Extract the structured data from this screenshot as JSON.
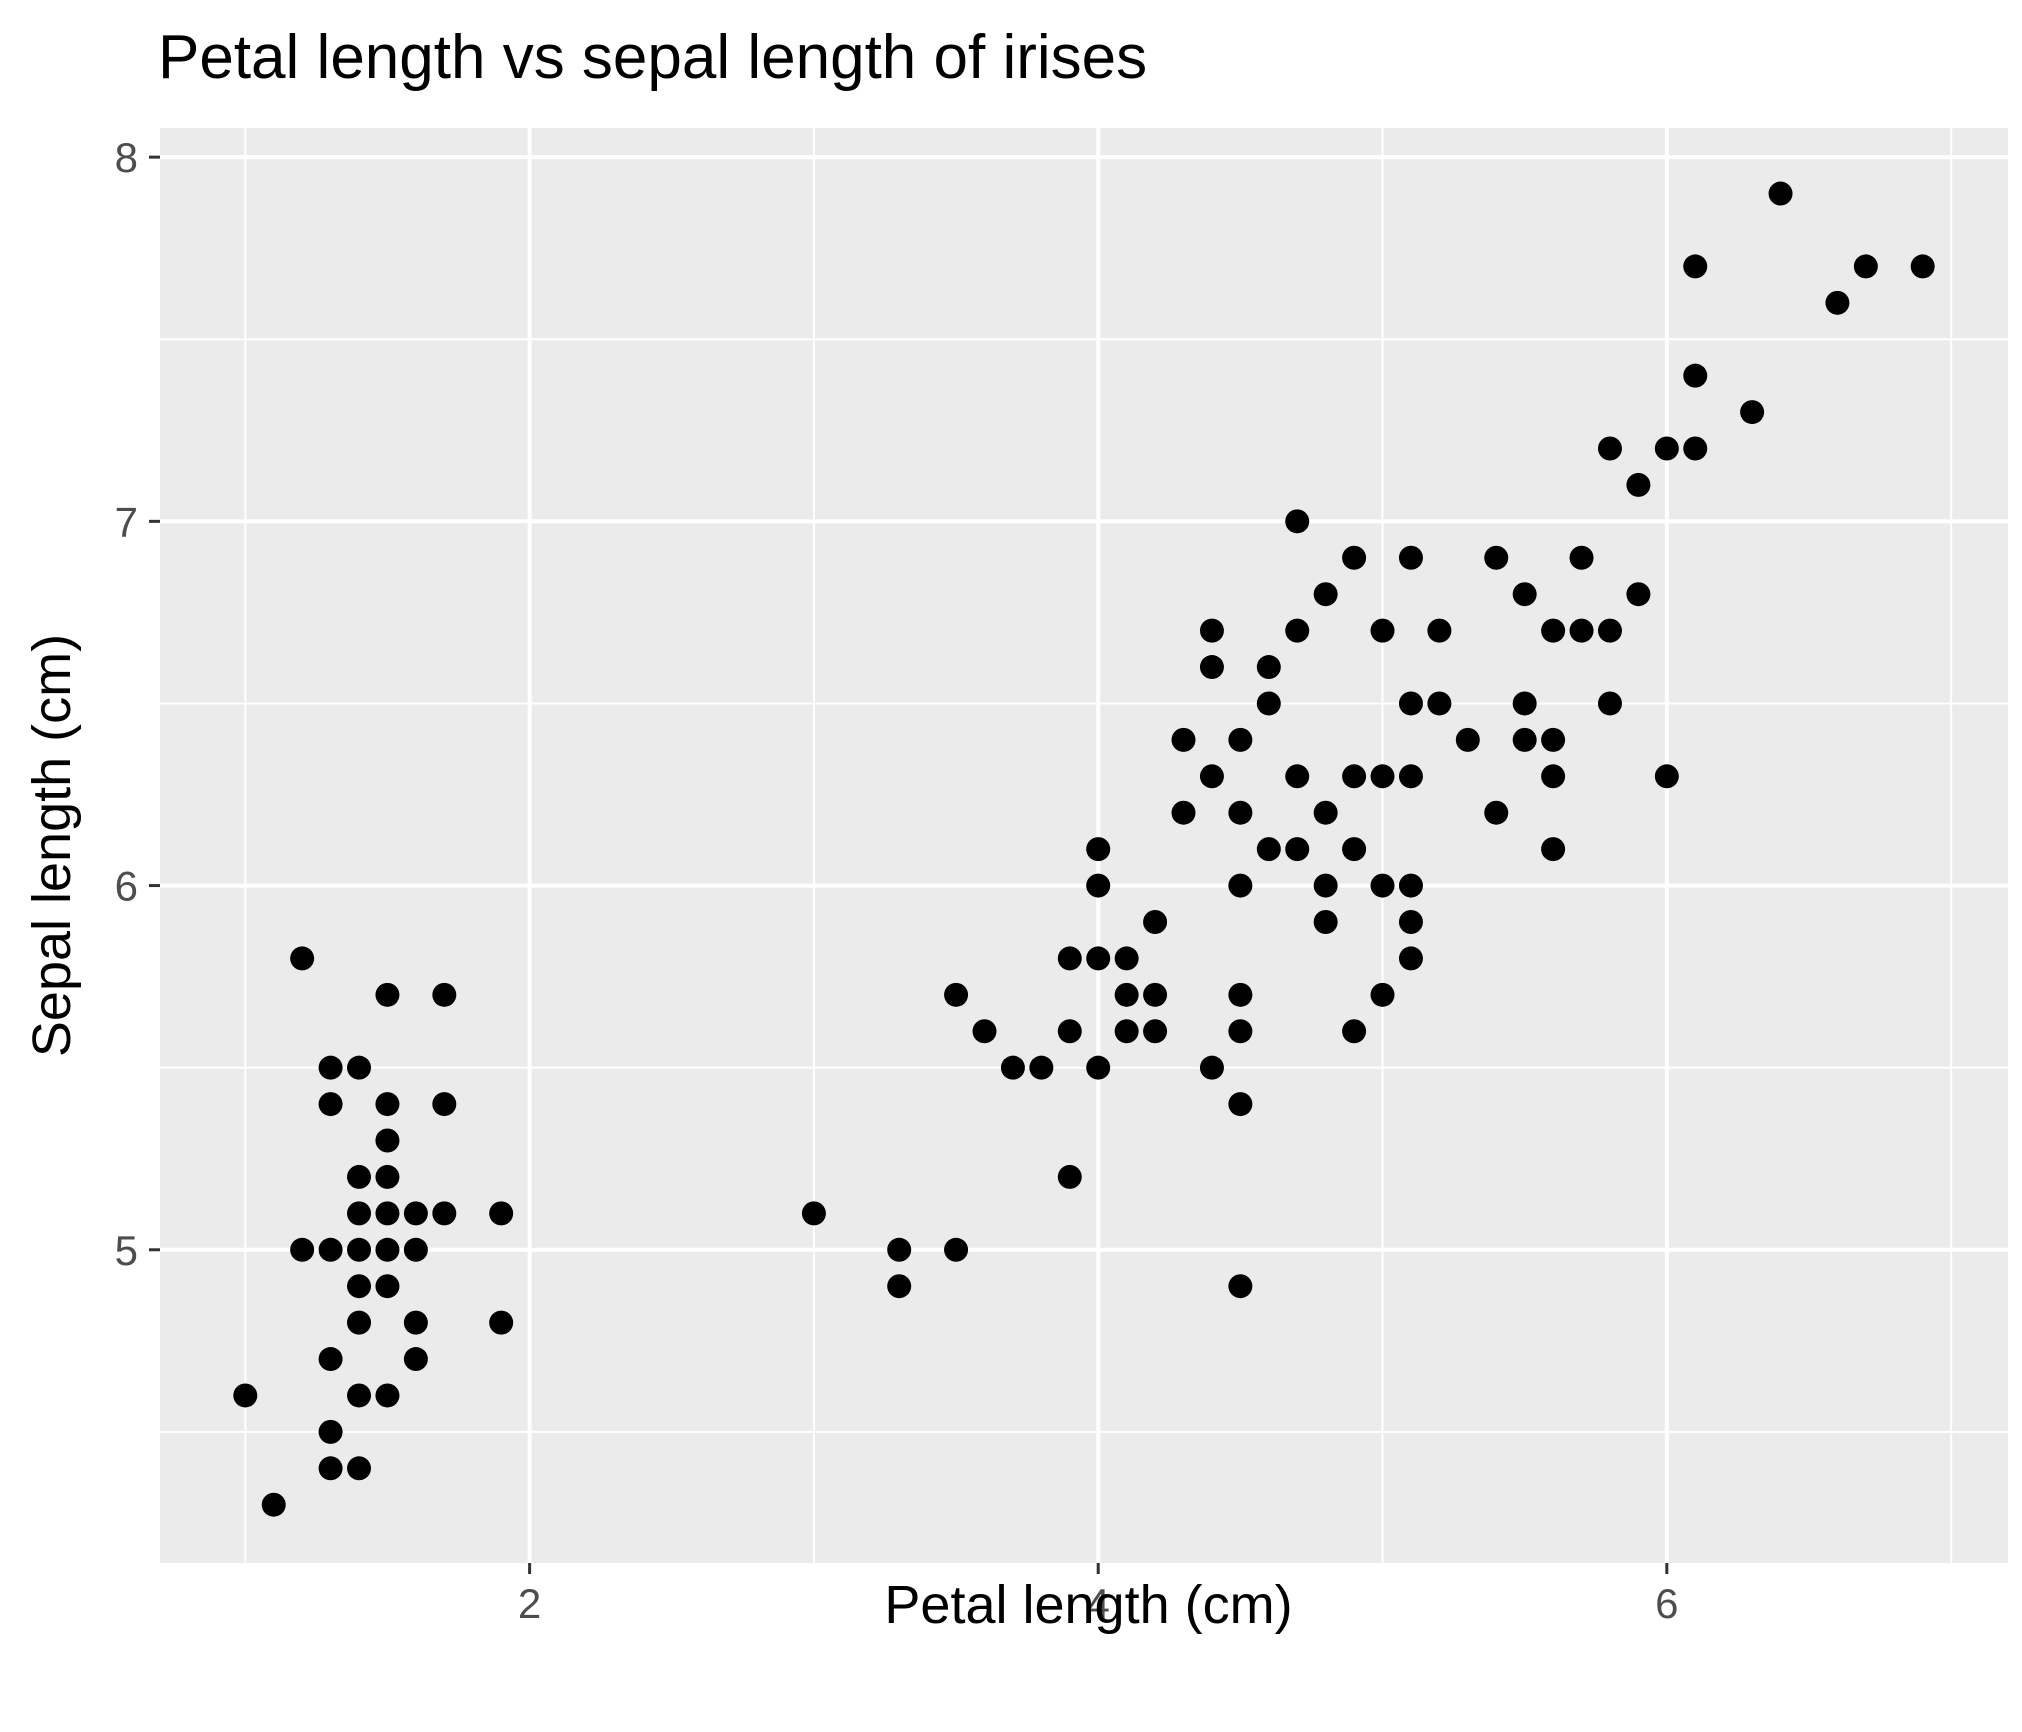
{
  "chart_data": {
    "type": "scatter",
    "title": "Petal length vs sepal length of irises",
    "xlabel": "Petal length (cm)",
    "ylabel": "Sepal length (cm)",
    "xlim": [
      0.7,
      7.2
    ],
    "ylim": [
      4.14,
      8.08
    ],
    "x_ticks": [
      2,
      4,
      6
    ],
    "y_ticks": [
      5,
      6,
      7,
      8
    ],
    "x_tick_labels": [
      "2",
      "4",
      "6"
    ],
    "y_tick_labels": [
      "5",
      "6",
      "7",
      "8"
    ],
    "x_minor": [
      1,
      3,
      5,
      7
    ],
    "y_minor": [
      4.5,
      5.5,
      6.5,
      7.5
    ],
    "grid": true,
    "background": "#ebebeb",
    "point_color": "#000000",
    "points": [
      [
        1.0,
        4.6
      ],
      [
        1.1,
        4.3
      ],
      [
        1.2,
        5.8
      ],
      [
        1.2,
        5.0
      ],
      [
        1.3,
        5.5
      ],
      [
        1.3,
        5.4
      ],
      [
        1.3,
        5.0
      ],
      [
        1.3,
        4.7
      ],
      [
        1.3,
        4.5
      ],
      [
        1.3,
        4.4
      ],
      [
        1.4,
        5.5
      ],
      [
        1.4,
        5.2
      ],
      [
        1.4,
        5.1
      ],
      [
        1.4,
        5.0
      ],
      [
        1.4,
        4.9
      ],
      [
        1.4,
        4.8
      ],
      [
        1.4,
        4.6
      ],
      [
        1.4,
        4.4
      ],
      [
        1.5,
        5.7
      ],
      [
        1.5,
        5.4
      ],
      [
        1.5,
        5.3
      ],
      [
        1.5,
        5.2
      ],
      [
        1.5,
        5.1
      ],
      [
        1.5,
        5.0
      ],
      [
        1.5,
        4.9
      ],
      [
        1.5,
        4.6
      ],
      [
        1.6,
        5.1
      ],
      [
        1.6,
        5.0
      ],
      [
        1.6,
        4.8
      ],
      [
        1.6,
        4.7
      ],
      [
        1.7,
        5.7
      ],
      [
        1.7,
        5.4
      ],
      [
        1.7,
        5.1
      ],
      [
        1.9,
        5.1
      ],
      [
        1.9,
        4.8
      ],
      [
        3.0,
        5.1
      ],
      [
        3.3,
        5.0
      ],
      [
        3.3,
        4.9
      ],
      [
        3.5,
        5.7
      ],
      [
        3.5,
        5.0
      ],
      [
        3.6,
        5.6
      ],
      [
        3.7,
        5.5
      ],
      [
        3.8,
        5.5
      ],
      [
        3.9,
        5.8
      ],
      [
        3.9,
        5.6
      ],
      [
        3.9,
        5.2
      ],
      [
        4.0,
        6.1
      ],
      [
        4.0,
        6.0
      ],
      [
        4.0,
        5.8
      ],
      [
        4.0,
        5.5
      ],
      [
        4.1,
        5.8
      ],
      [
        4.1,
        5.7
      ],
      [
        4.1,
        5.6
      ],
      [
        4.2,
        5.9
      ],
      [
        4.2,
        5.7
      ],
      [
        4.2,
        5.6
      ],
      [
        4.3,
        6.4
      ],
      [
        4.3,
        6.2
      ],
      [
        4.4,
        6.7
      ],
      [
        4.4,
        6.6
      ],
      [
        4.4,
        6.3
      ],
      [
        4.4,
        5.5
      ],
      [
        4.5,
        6.4
      ],
      [
        4.5,
        6.2
      ],
      [
        4.5,
        6.0
      ],
      [
        4.5,
        5.7
      ],
      [
        4.5,
        5.6
      ],
      [
        4.5,
        5.4
      ],
      [
        4.5,
        4.9
      ],
      [
        4.6,
        6.6
      ],
      [
        4.6,
        6.5
      ],
      [
        4.6,
        6.1
      ],
      [
        4.7,
        7.0
      ],
      [
        4.7,
        6.7
      ],
      [
        4.7,
        6.3
      ],
      [
        4.7,
        6.1
      ],
      [
        4.8,
        6.8
      ],
      [
        4.8,
        6.2
      ],
      [
        4.8,
        6.0
      ],
      [
        4.8,
        5.9
      ],
      [
        4.9,
        6.9
      ],
      [
        4.9,
        6.3
      ],
      [
        4.9,
        6.1
      ],
      [
        4.9,
        5.6
      ],
      [
        5.0,
        6.7
      ],
      [
        5.0,
        6.3
      ],
      [
        5.0,
        6.0
      ],
      [
        5.0,
        5.7
      ],
      [
        5.1,
        6.9
      ],
      [
        5.1,
        6.5
      ],
      [
        5.1,
        6.3
      ],
      [
        5.1,
        6.0
      ],
      [
        5.1,
        5.9
      ],
      [
        5.1,
        5.8
      ],
      [
        5.2,
        6.7
      ],
      [
        5.2,
        6.5
      ],
      [
        5.3,
        6.4
      ],
      [
        5.4,
        6.9
      ],
      [
        5.4,
        6.2
      ],
      [
        5.5,
        6.8
      ],
      [
        5.5,
        6.5
      ],
      [
        5.5,
        6.4
      ],
      [
        5.6,
        6.7
      ],
      [
        5.6,
        6.4
      ],
      [
        5.6,
        6.3
      ],
      [
        5.6,
        6.1
      ],
      [
        5.7,
        6.9
      ],
      [
        5.7,
        6.7
      ],
      [
        5.8,
        7.2
      ],
      [
        5.8,
        6.7
      ],
      [
        5.8,
        6.5
      ],
      [
        5.9,
        7.1
      ],
      [
        5.9,
        6.8
      ],
      [
        6.0,
        7.2
      ],
      [
        6.0,
        6.3
      ],
      [
        6.1,
        7.7
      ],
      [
        6.1,
        7.4
      ],
      [
        6.1,
        7.2
      ],
      [
        6.3,
        7.3
      ],
      [
        6.4,
        7.9
      ],
      [
        6.6,
        7.6
      ],
      [
        6.7,
        7.7
      ],
      [
        6.9,
        7.7
      ]
    ]
  }
}
